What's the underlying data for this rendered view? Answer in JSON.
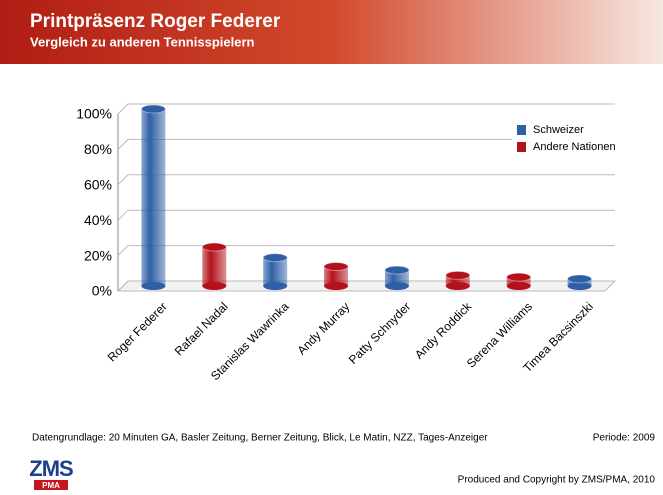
{
  "header": {
    "title": "Printpräsenz Roger Federer",
    "subtitle": "Vergleich zu anderen Tennisspielern"
  },
  "chart_data": {
    "type": "bar",
    "categories": [
      "Roger Federer",
      "Rafael Nadal",
      "Stanislas Wawrinka",
      "Andy Murray",
      "Patty Schnyder",
      "Andy Roddick",
      "Serena Williams",
      "Timea Bacsinszki"
    ],
    "series": [
      {
        "name": "Schweizer",
        "color": "#2e5fa6",
        "values": [
          100,
          null,
          16,
          null,
          9,
          null,
          null,
          4
        ]
      },
      {
        "name": "Andere Nationen",
        "color": "#b3121c",
        "values": [
          null,
          22,
          null,
          11,
          null,
          6,
          5,
          null
        ]
      }
    ],
    "ylim": [
      0,
      100
    ],
    "yticks": [
      {
        "value": 0,
        "label": "0%"
      },
      {
        "value": 20,
        "label": "20%"
      },
      {
        "value": 40,
        "label": "40%"
      },
      {
        "value": 60,
        "label": "60%"
      },
      {
        "value": 80,
        "label": "80%"
      },
      {
        "value": 100,
        "label": "100%"
      }
    ],
    "grid": true,
    "legend": "top-right"
  },
  "footer": {
    "source": "Datengrundlage: 20 Minuten GA, Basler Zeitung, Berner Zeitung, Blick, Le Matin, NZZ, Tages-Anzeiger",
    "period": "Periode: 2009",
    "copyright": "Produced and Copyright by ZMS/PMA, 2010",
    "logo": "ZMS",
    "logo_sub": "PMA"
  }
}
